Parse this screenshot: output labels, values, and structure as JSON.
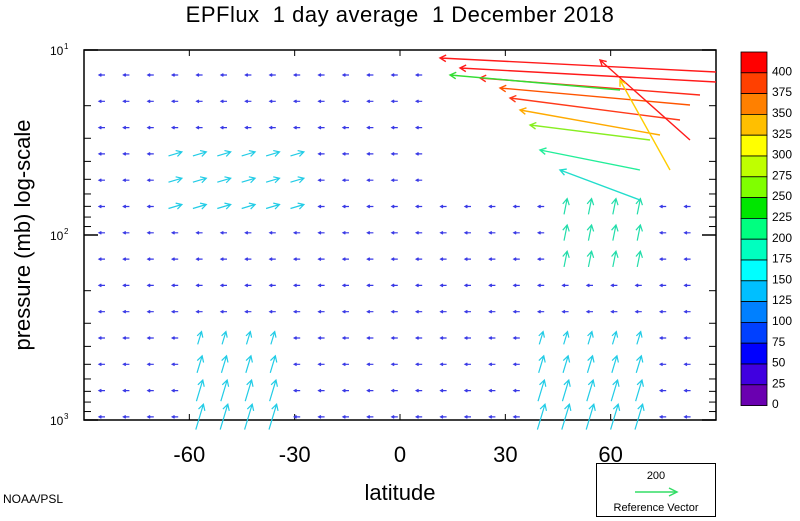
{
  "chart_data": {
    "type": "vector-field",
    "title": "EPFlux  1 day average  1 December 2018",
    "xlabel": "latitude",
    "ylabel": "pressure (mb)  log-scale",
    "xlim": [
      -90,
      90
    ],
    "ylim_log": [
      1000,
      10
    ],
    "y_scale": "log",
    "x_ticks": [
      {
        "value": -60,
        "label": "-60"
      },
      {
        "value": -30,
        "label": "-30"
      },
      {
        "value": 0,
        "label": "0"
      },
      {
        "value": 30,
        "label": "30"
      },
      {
        "value": 60,
        "label": "60"
      }
    ],
    "y_ticks": [
      {
        "value": 10,
        "base": "10",
        "exp": "1"
      },
      {
        "value": 100,
        "base": "10",
        "exp": "2"
      },
      {
        "value": 1000,
        "base": "10",
        "exp": "3"
      }
    ],
    "colorbar": {
      "levels": [
        "400",
        "375",
        "350",
        "325",
        "300",
        "275",
        "250",
        "225",
        "200",
        "175",
        "150",
        "125",
        "100",
        "75",
        "50",
        "25",
        "0"
      ],
      "colors": [
        "#ff0000",
        "#ff4000",
        "#ff8000",
        "#ffbf00",
        "#ffff00",
        "#bfff00",
        "#80ff00",
        "#00e600",
        "#00ff80",
        "#00ffbf",
        "#00ffff",
        "#00bfff",
        "#0080ff",
        "#0040ff",
        "#0000ff",
        "#4000e0",
        "#6a00b0"
      ]
    },
    "reference_vector": {
      "value": "200",
      "label": "Reference Vector",
      "color": "#33dd66"
    },
    "source_label": "NOAA/PSL"
  }
}
